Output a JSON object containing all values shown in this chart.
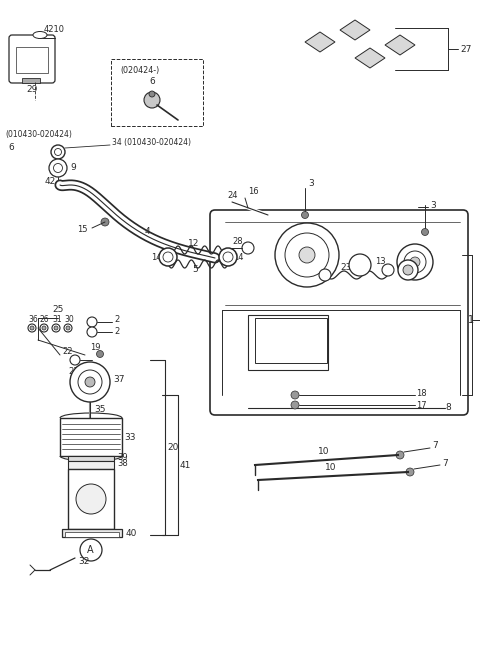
{
  "bg_color": "#ffffff",
  "line_color": "#2a2a2a",
  "figsize": [
    4.8,
    6.56
  ],
  "dpi": 100,
  "xlim": [
    0,
    480
  ],
  "ylim": [
    0,
    656
  ]
}
